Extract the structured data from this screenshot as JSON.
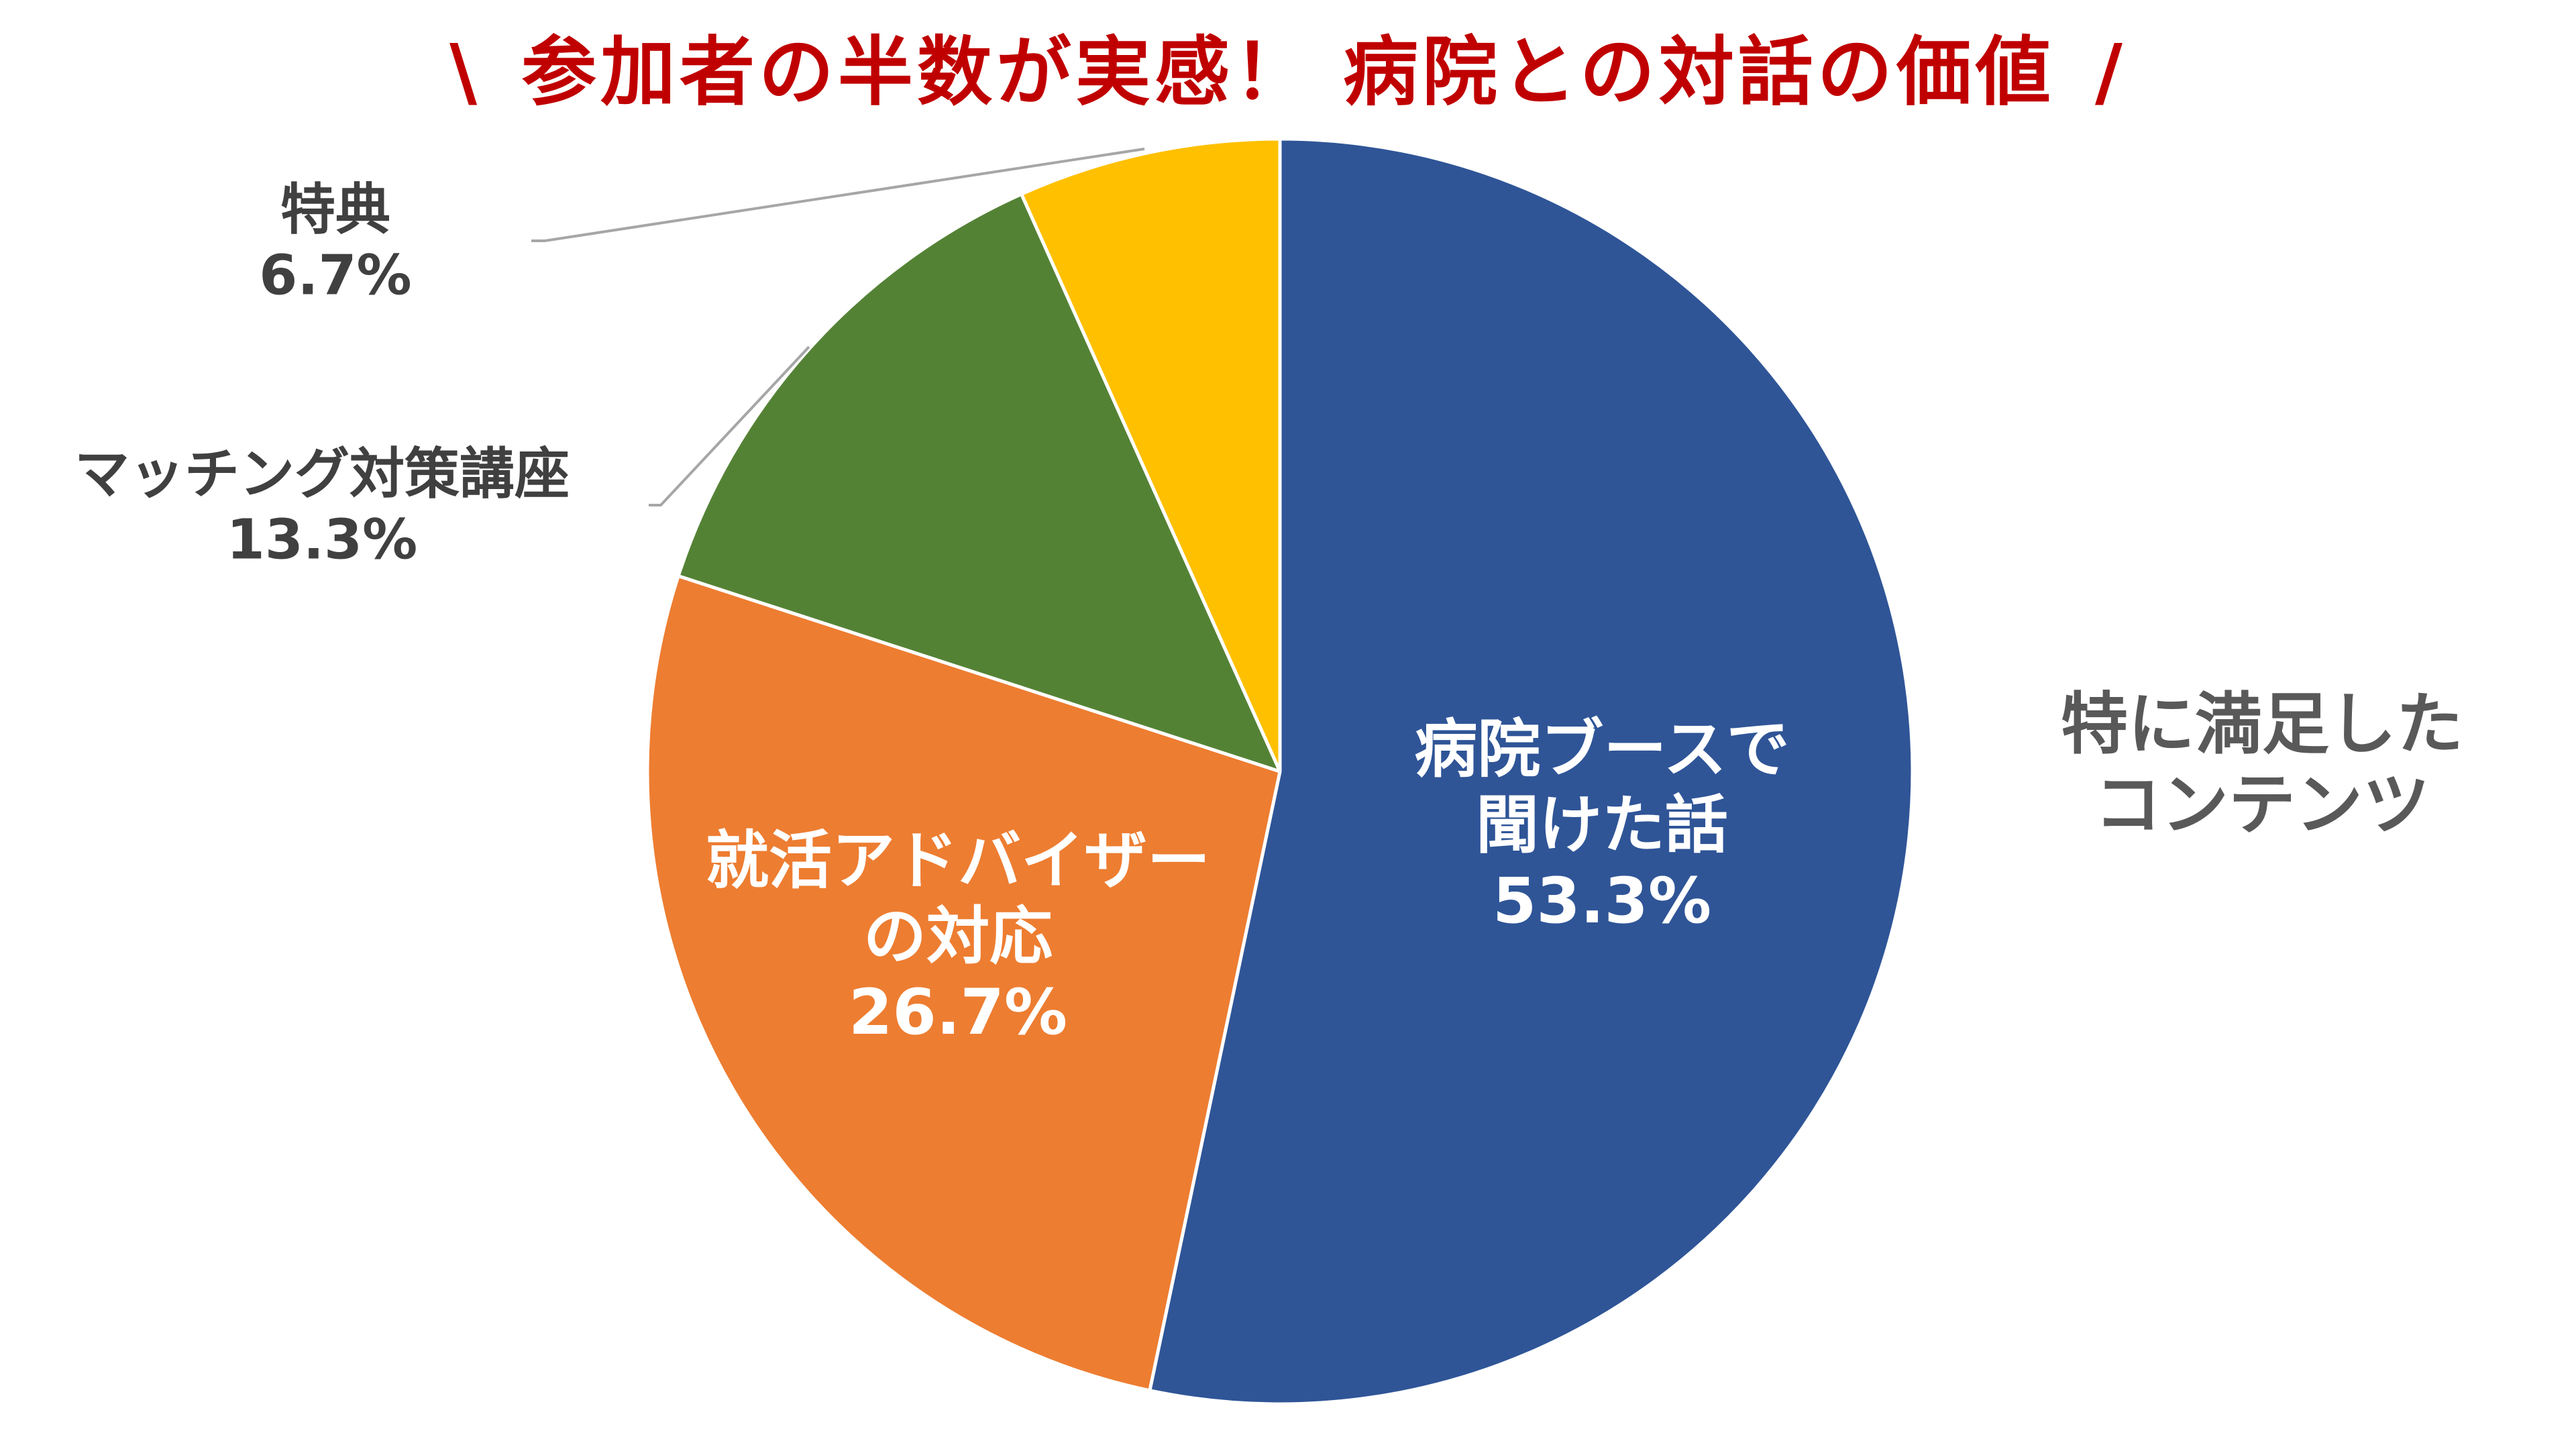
{
  "title": {
    "left_mark": "\\",
    "text": "参加者の半数が実感！ 病院との対話の価値",
    "right_mark": "/"
  },
  "side_caption": {
    "line1": "特に満足した",
    "line2": "コンテンツ"
  },
  "slices": [
    {
      "label_line1": "病院ブースで",
      "label_line2": "聞けた話",
      "percent": "53.3%"
    },
    {
      "label_line1": "就活アドバイザー",
      "label_line2": "の対応",
      "percent": "26.7%"
    },
    {
      "label_line1": "マッチング対策講座",
      "percent": "13.3%"
    },
    {
      "label_line1": "特典",
      "percent": "6.7%"
    }
  ],
  "chart_data": {
    "type": "pie",
    "title": "＼ 参加者の半数が実感！ 病院との対話の価値 ／",
    "subtitle": "特に満足したコンテンツ",
    "categories": [
      "病院ブースで聞けた話",
      "就活アドバイザーの対応",
      "マッチング対策講座",
      "特典"
    ],
    "values": [
      53.3,
      26.7,
      13.3,
      6.7
    ],
    "unit": "%",
    "colors": [
      "#2f5597",
      "#ed7d31",
      "#548235",
      "#ffc000"
    ],
    "start_angle": "12 o'clock, clockwise",
    "legend": "none (data labels)",
    "xlabel": "",
    "ylabel": ""
  },
  "colors": {
    "title": "#c00000",
    "outer_label": "#404040",
    "side_caption": "#595959",
    "leader_line": "#a6a6a6"
  }
}
